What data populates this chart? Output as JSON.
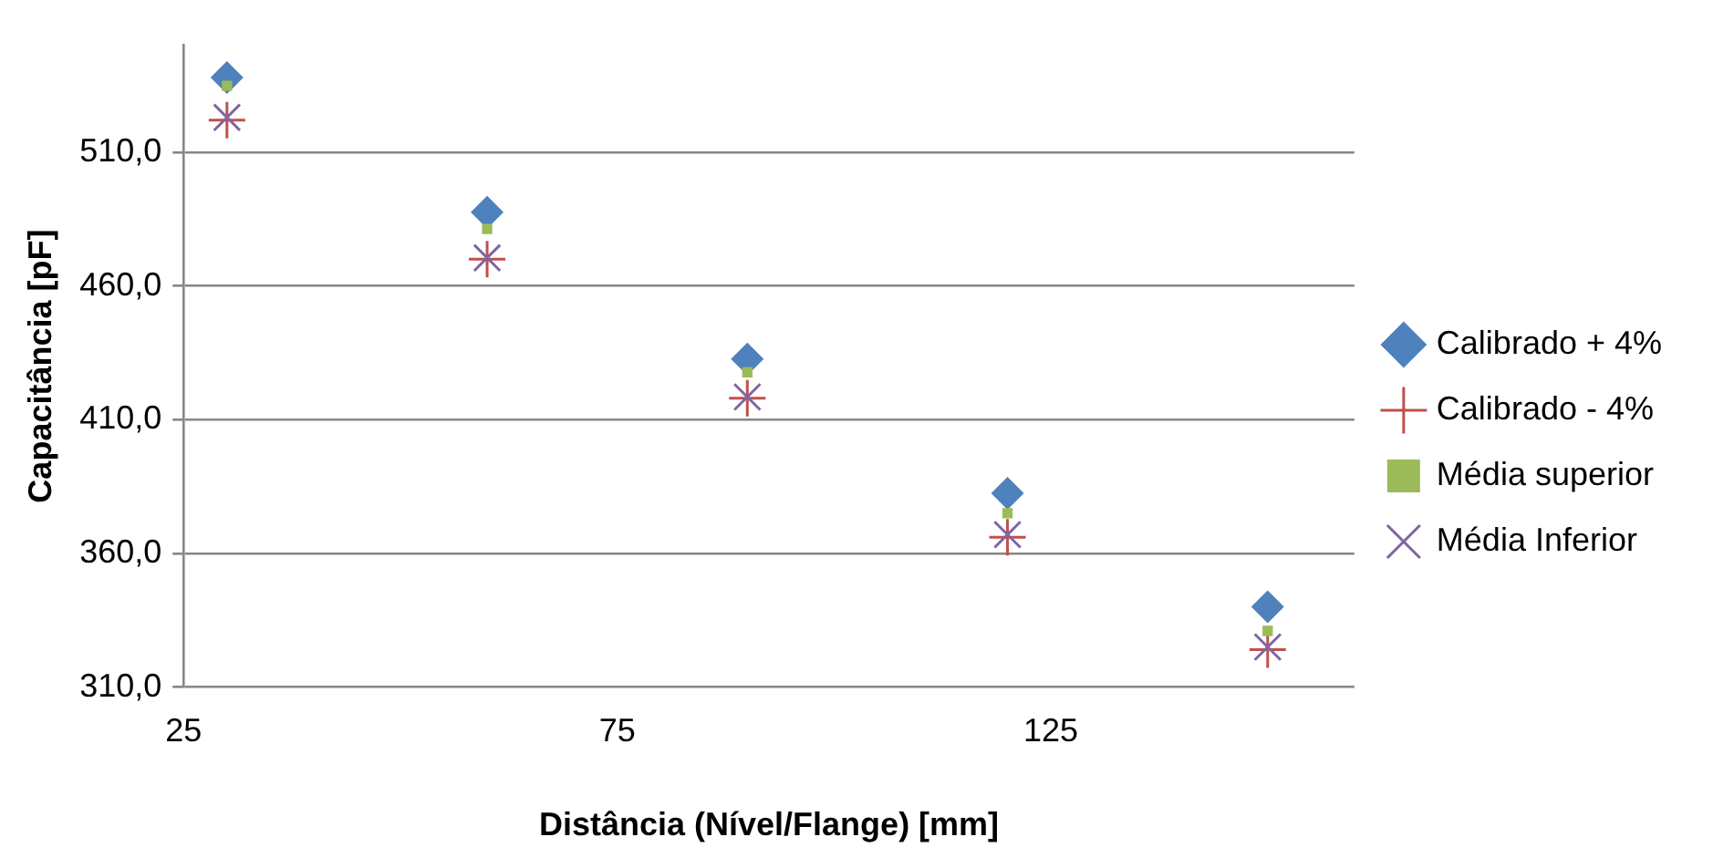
{
  "chart_data": {
    "type": "scatter",
    "xlabel": "Distância (Nível/Flange) [mm]",
    "ylabel": "Capacitância [pF]",
    "x": [
      30,
      60,
      90,
      120,
      150
    ],
    "series": [
      {
        "name": "Calibrado + 4%",
        "color": "#4f81bd",
        "marker": "diamond",
        "values": [
          537.9,
          487.6,
          432.7,
          382.5,
          340
        ]
      },
      {
        "name": "Calibrado - 4%",
        "color": "#c0504d",
        "marker": "plus",
        "values": [
          522,
          470,
          418,
          366,
          324
        ]
      },
      {
        "name": "Média superior",
        "color": "#9bbb59",
        "marker": "square",
        "values": [
          534.8,
          481.3,
          427.7,
          375,
          331
        ]
      },
      {
        "name": "Média Inferior",
        "color": "#8064a2",
        "marker": "x",
        "values": [
          523,
          470.5,
          418.5,
          367,
          325
        ]
      }
    ],
    "xlim": [
      25,
      160
    ],
    "xticks": [
      25,
      75,
      125
    ],
    "ylim": [
      310,
      550
    ],
    "yticks": [
      {
        "value": 310,
        "label": "310,0"
      },
      {
        "value": 360,
        "label": "360,0"
      },
      {
        "value": 410,
        "label": "410,0"
      },
      {
        "value": 460,
        "label": "460,0"
      },
      {
        "value": 510,
        "label": "510,0"
      }
    ],
    "grid": "y",
    "legend": "right"
  }
}
